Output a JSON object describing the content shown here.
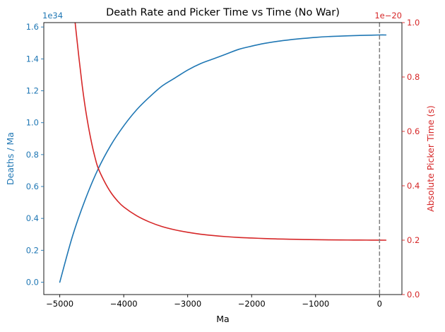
{
  "chart_data": {
    "type": "line",
    "title": "Death Rate and Picker Time vs Time (No War)",
    "xlabel": "Ma",
    "xlim": [
      -5250,
      350
    ],
    "x_ticks": [
      -5000,
      -4000,
      -3000,
      -2000,
      -1000,
      0
    ],
    "x_tick_labels": [
      "−5000",
      "−4000",
      "−3000",
      "−2000",
      "−1000",
      "0"
    ],
    "left_axis": {
      "label": "Deaths / Ma",
      "offset_text": "1e34",
      "color": "#1f77b4",
      "ylim": [
        -0.0775,
        1.6275
      ],
      "ticks": [
        0.0,
        0.2,
        0.4,
        0.6,
        0.8,
        1.0,
        1.2,
        1.4,
        1.6
      ],
      "tick_labels": [
        "0.0",
        "0.2",
        "0.4",
        "0.6",
        "0.8",
        "1.0",
        "1.2",
        "1.4",
        "1.6"
      ]
    },
    "right_axis": {
      "label": "Absolute Picker Time (s)",
      "offset_text": "1e−20",
      "color": "#d62728",
      "ylim": [
        0.0,
        1.0
      ],
      "ticks": [
        0.0,
        0.2,
        0.4,
        0.6,
        0.8,
        1.0
      ],
      "tick_labels": [
        "0.0",
        "0.2",
        "0.4",
        "0.6",
        "0.8",
        "1.0"
      ]
    },
    "reference_line": {
      "x": 0,
      "color": "#808080",
      "style": "dashed"
    },
    "grid": false,
    "series": [
      {
        "axis": "left",
        "color": "#1f77b4",
        "x": [
          -5000,
          -4800,
          -4600,
          -4400,
          -4200,
          -4000,
          -3800,
          -3600,
          -3400,
          -3200,
          -3000,
          -2800,
          -2600,
          -2400,
          -2200,
          -2000,
          -1800,
          -1600,
          -1400,
          -1200,
          -1000,
          -800,
          -600,
          -400,
          -200,
          0,
          100
        ],
        "y": [
          0.0,
          0.29,
          0.52,
          0.71,
          0.86,
          0.98,
          1.08,
          1.16,
          1.23,
          1.28,
          1.33,
          1.37,
          1.4,
          1.43,
          1.46,
          1.48,
          1.497,
          1.51,
          1.52,
          1.528,
          1.535,
          1.54,
          1.543,
          1.546,
          1.548,
          1.55,
          1.55
        ]
      },
      {
        "axis": "right",
        "color": "#d62728",
        "x": [
          -4760,
          -4700,
          -4650,
          -4600,
          -4550,
          -4500,
          -4450,
          -4400,
          -4300,
          -4200,
          -4100,
          -4000,
          -3800,
          -3600,
          -3400,
          -3200,
          -3000,
          -2800,
          -2600,
          -2400,
          -2200,
          -2000,
          -1800,
          -1600,
          -1400,
          -1200,
          -1000,
          -800,
          -600,
          -400,
          -200,
          0,
          100
        ],
        "y": [
          1.0,
          0.87,
          0.77,
          0.685,
          0.615,
          0.555,
          0.505,
          0.465,
          0.415,
          0.375,
          0.345,
          0.322,
          0.29,
          0.267,
          0.25,
          0.238,
          0.229,
          0.222,
          0.217,
          0.213,
          0.21,
          0.208,
          0.206,
          0.2045,
          0.2035,
          0.2025,
          0.2018,
          0.2012,
          0.2008,
          0.2005,
          0.2003,
          0.2001,
          0.2
        ]
      }
    ]
  }
}
